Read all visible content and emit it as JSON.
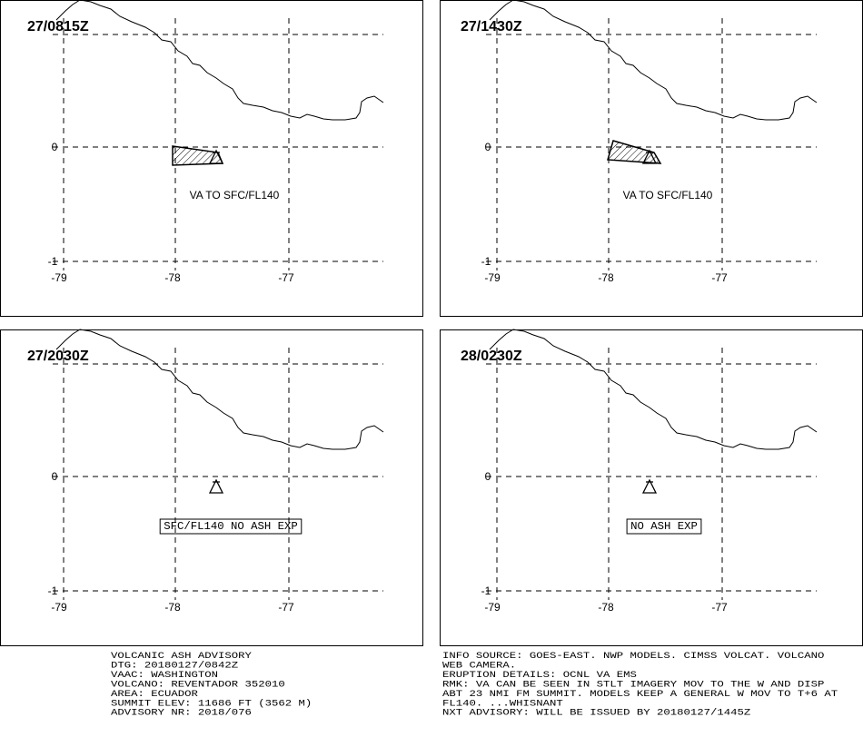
{
  "panels": [
    {
      "time": "27/0815Z",
      "annotation": "VA TO SFC/FL140",
      "boxed": false,
      "ash_area": true
    },
    {
      "time": "27/1430Z",
      "annotation": "VA TO SFC/FL140",
      "boxed": false,
      "ash_area": true
    },
    {
      "time": "27/2030Z",
      "annotation": "SFC/FL140 NO ASH EXP",
      "boxed": true,
      "ash_area": false
    },
    {
      "time": "28/0230Z",
      "annotation": "NO ASH EXP",
      "boxed": true,
      "ash_area": false
    }
  ],
  "axes": {
    "longitude_labels": [
      "-79",
      "-78",
      "-77"
    ],
    "latitude_labels": [
      "0",
      "-1"
    ]
  },
  "advisory_left": [
    "VOLCANIC ASH ADVISORY",
    "DTG: 20180127/0842Z",
    "VAAC: WASHINGTON",
    "VOLCANO: REVENTADOR 352010",
    "AREA: ECUADOR",
    "SUMMIT ELEV: 11686 FT (3562 M)",
    "ADVISORY NR: 2018/076"
  ],
  "advisory_right": [
    "INFO SOURCE: GOES-EAST. NWP MODELS. CIMSS VOLCAT. VOLCANO",
    "WEB CAMERA.",
    "ERUPTION DETAILS: OCNL VA EMS",
    "RMK: VA CAN BE SEEN IN STLT IMAGERY MOV TO THE W AND DISP",
    "ABT 23 NMI FM SUMMIT. MODELS KEEP A GENERAL W MOV TO T+6 AT",
    "FL140. ...WHISNANT",
    "NXT ADVISORY: WILL BE ISSUED BY 20180127/1445Z"
  ]
}
